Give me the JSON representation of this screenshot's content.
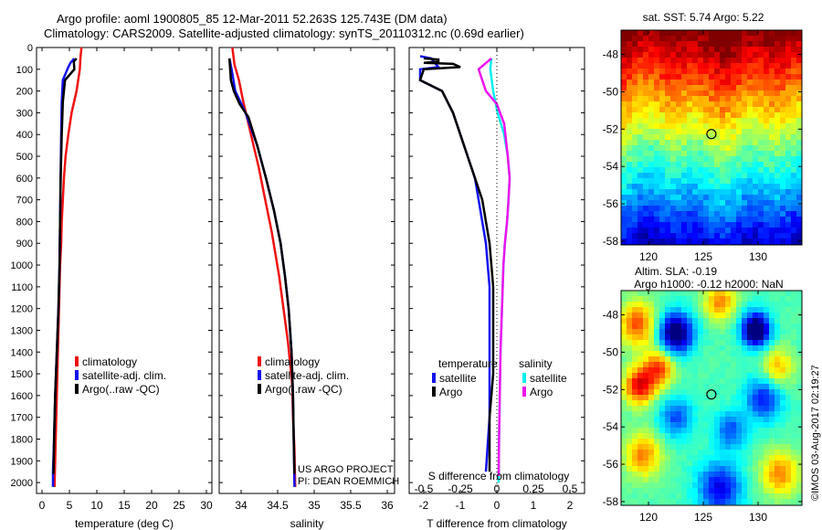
{
  "header": {
    "line1": "Argo profile: aoml 1900805_85 12-Mar-2011 52.263S 125.743E (DM data)",
    "line2": "Climatology: CARS2009. Satellite-adjusted climatology: synTS_20110312.nc (0.69d earlier)"
  },
  "credits": {
    "project": "US ARGO PROJECT",
    "pi": "PI: DEAN ROEMMICH",
    "imos": "©IMOS 03-Aug-2017 02:19:27"
  },
  "colors": {
    "red": "#ee1111",
    "blue": "#1111ee",
    "black": "#000000",
    "cyan": "#00eeee",
    "magenta": "#ee11ee"
  },
  "chart_data": [
    {
      "type": "line",
      "xlabel": "temperature (deg C)",
      "ylabel": "",
      "xlim": [
        -1,
        31
      ],
      "ylim": [
        2050,
        0
      ],
      "xticks": [
        0,
        5,
        10,
        15,
        20,
        25,
        30
      ],
      "yticks": [
        0,
        100,
        200,
        300,
        400,
        500,
        600,
        700,
        800,
        900,
        1000,
        1100,
        1200,
        1300,
        1400,
        1500,
        1600,
        1700,
        1800,
        1900,
        2000
      ],
      "legend": [
        "climatology",
        "satellite-adj. clim.",
        "Argo(..raw -QC)"
      ],
      "series": [
        {
          "name": "climatology",
          "color": "red",
          "points": [
            [
              7.2,
              0
            ],
            [
              7.0,
              50
            ],
            [
              6.9,
              100
            ],
            [
              6.3,
              200
            ],
            [
              5.4,
              300
            ],
            [
              4.8,
              400
            ],
            [
              4.3,
              500
            ],
            [
              4.0,
              600
            ],
            [
              3.8,
              700
            ],
            [
              3.6,
              800
            ],
            [
              3.5,
              900
            ],
            [
              3.3,
              1000
            ],
            [
              3.2,
              1100
            ],
            [
              3.1,
              1200
            ],
            [
              3.0,
              1300
            ],
            [
              2.9,
              1400
            ],
            [
              2.8,
              1500
            ],
            [
              2.7,
              1600
            ],
            [
              2.6,
              1700
            ],
            [
              2.5,
              1800
            ],
            [
              2.4,
              1900
            ],
            [
              2.3,
              2000
            ],
            [
              2.3,
              2020
            ]
          ]
        },
        {
          "name": "satellite-adj. clim.",
          "color": "blue",
          "points": [
            [
              5.9,
              50
            ],
            [
              5.2,
              70
            ],
            [
              4.8,
              90
            ],
            [
              3.8,
              150
            ],
            [
              3.6,
              250
            ],
            [
              3.5,
              400
            ],
            [
              3.4,
              600
            ],
            [
              3.3,
              800
            ],
            [
              3.2,
              1000
            ],
            [
              3.0,
              1200
            ],
            [
              2.7,
              1400
            ],
            [
              2.4,
              1600
            ],
            [
              2.2,
              1800
            ],
            [
              2.0,
              1950
            ],
            [
              2.0,
              2020
            ]
          ]
        },
        {
          "name": "Argo(..raw -QC)",
          "color": "black",
          "points": [
            [
              6.3,
              50
            ],
            [
              5.8,
              65
            ],
            [
              5.9,
              100
            ],
            [
              4.2,
              150
            ],
            [
              3.8,
              250
            ],
            [
              3.6,
              400
            ],
            [
              3.4,
              600
            ],
            [
              3.3,
              800
            ],
            [
              3.2,
              1000
            ],
            [
              3.0,
              1200
            ],
            [
              2.7,
              1400
            ],
            [
              2.4,
              1600
            ],
            [
              2.2,
              1800
            ],
            [
              2.1,
              1960
            ]
          ]
        }
      ]
    },
    {
      "type": "line",
      "xlabel": "salinity",
      "ylabel": "",
      "xlim": [
        33.7,
        36.1
      ],
      "ylim": [
        2050,
        0
      ],
      "xticks": [
        34,
        34.5,
        35,
        35.5,
        36
      ],
      "legend": [
        "climatology",
        "satellite-adj. clim.",
        "Argo(..raw -QC)"
      ],
      "series": [
        {
          "name": "climatology",
          "color": "red",
          "points": [
            [
              33.88,
              0
            ],
            [
              33.91,
              80
            ],
            [
              33.97,
              150
            ],
            [
              34.03,
              250
            ],
            [
              34.1,
              350
            ],
            [
              34.17,
              450
            ],
            [
              34.24,
              550
            ],
            [
              34.3,
              650
            ],
            [
              34.36,
              750
            ],
            [
              34.42,
              850
            ],
            [
              34.47,
              950
            ],
            [
              34.52,
              1050
            ],
            [
              34.56,
              1150
            ],
            [
              34.6,
              1250
            ],
            [
              34.64,
              1350
            ],
            [
              34.67,
              1450
            ],
            [
              34.7,
              1550
            ],
            [
              34.71,
              1700
            ],
            [
              34.73,
              1850
            ],
            [
              34.74,
              2020
            ]
          ]
        },
        {
          "name": "satellite-adj. clim.",
          "color": "blue",
          "points": [
            [
              33.84,
              50
            ],
            [
              33.87,
              100
            ],
            [
              33.92,
              200
            ],
            [
              34.06,
              300
            ],
            [
              34.22,
              450
            ],
            [
              34.34,
              600
            ],
            [
              34.45,
              750
            ],
            [
              34.54,
              900
            ],
            [
              34.6,
              1050
            ],
            [
              34.65,
              1200
            ],
            [
              34.69,
              1400
            ],
            [
              34.71,
              1600
            ],
            [
              34.72,
              1800
            ],
            [
              34.73,
              2020
            ]
          ]
        },
        {
          "name": "Argo(..raw -QC)",
          "color": "black",
          "points": [
            [
              33.84,
              50
            ],
            [
              33.86,
              150
            ],
            [
              33.9,
              200
            ],
            [
              33.98,
              260
            ],
            [
              34.1,
              320
            ],
            [
              34.22,
              450
            ],
            [
              34.34,
              600
            ],
            [
              34.45,
              750
            ],
            [
              34.54,
              900
            ],
            [
              34.6,
              1050
            ],
            [
              34.65,
              1200
            ],
            [
              34.69,
              1400
            ],
            [
              34.71,
              1600
            ],
            [
              34.72,
              1800
            ],
            [
              34.73,
              1960
            ]
          ]
        }
      ]
    },
    {
      "type": "line",
      "xlabel": "T difference from climatology",
      "x2label": "S difference from climatology",
      "ylabel": "",
      "xlim": [
        -2.4,
        2.4
      ],
      "ylim": [
        2050,
        0
      ],
      "xticks": [
        -2,
        -1,
        0,
        1,
        2
      ],
      "x2ticks": [
        "-0.5",
        "-0.25",
        "0",
        "0.25",
        "0.5"
      ],
      "legend_temperature_title": "temperature",
      "legend_salinity_title": "salinity",
      "legend": [
        "satellite",
        "Argo",
        "satellite",
        "Argo"
      ],
      "series": [
        {
          "name": "satellite",
          "group": "temperature",
          "color": "blue",
          "points": [
            [
              -2.1,
              40
            ],
            [
              -1.8,
              50
            ],
            [
              -1.7,
              70
            ],
            [
              -1.6,
              90
            ],
            [
              -2.1,
              100
            ],
            [
              -2.1,
              150
            ],
            [
              -1.5,
              200
            ],
            [
              -1.2,
              300
            ],
            [
              -1.0,
              400
            ],
            [
              -0.8,
              500
            ],
            [
              -0.6,
              600
            ],
            [
              -0.5,
              700
            ],
            [
              -0.4,
              800
            ],
            [
              -0.3,
              900
            ],
            [
              -0.2,
              1100
            ],
            [
              -0.2,
              1300
            ],
            [
              -0.2,
              1500
            ],
            [
              -0.2,
              1700
            ],
            [
              -0.3,
              1950
            ]
          ]
        },
        {
          "name": "Argo",
          "group": "temperature",
          "color": "black",
          "points": [
            [
              -2.0,
              50
            ],
            [
              -1.6,
              55
            ],
            [
              -1.6,
              65
            ],
            [
              -2.0,
              70
            ],
            [
              -1.2,
              75
            ],
            [
              -1.0,
              90
            ],
            [
              -2.0,
              100
            ],
            [
              -2.1,
              150
            ],
            [
              -1.5,
              200
            ],
            [
              -1.2,
              300
            ],
            [
              -1.0,
              400
            ],
            [
              -0.8,
              500
            ],
            [
              -0.6,
              600
            ],
            [
              -0.4,
              700
            ],
            [
              -0.3,
              800
            ],
            [
              -0.2,
              900
            ],
            [
              -0.1,
              1100
            ],
            [
              -0.1,
              1300
            ],
            [
              -0.1,
              1500
            ],
            [
              -0.2,
              1700
            ],
            [
              -0.2,
              1950
            ]
          ]
        },
        {
          "name": "satellite",
          "group": "salinity",
          "color": "cyan",
          "points": [
            [
              -0.15,
              50
            ],
            [
              -0.18,
              100
            ],
            [
              -0.1,
              200
            ],
            [
              0.02,
              300
            ],
            [
              0.2,
              400
            ],
            [
              0.3,
              500
            ],
            [
              0.35,
              600
            ],
            [
              0.32,
              700
            ],
            [
              0.28,
              800
            ],
            [
              0.22,
              900
            ],
            [
              0.18,
              1000
            ],
            [
              0.14,
              1200
            ],
            [
              0.1,
              1400
            ],
            [
              0.08,
              1600
            ],
            [
              0.06,
              1800
            ],
            [
              0.05,
              2000
            ]
          ]
        },
        {
          "name": "Argo",
          "group": "salinity",
          "color": "magenta",
          "points": [
            [
              -0.15,
              50
            ],
            [
              -0.5,
              100
            ],
            [
              -0.3,
              200
            ],
            [
              0.0,
              260
            ],
            [
              0.2,
              350
            ],
            [
              0.3,
              500
            ],
            [
              0.35,
              600
            ],
            [
              0.32,
              700
            ],
            [
              0.28,
              800
            ],
            [
              0.22,
              900
            ],
            [
              0.18,
              1000
            ],
            [
              0.14,
              1200
            ],
            [
              0.1,
              1400
            ],
            [
              0.08,
              1600
            ],
            [
              0.06,
              1800
            ],
            [
              0.05,
              1970
            ]
          ]
        }
      ]
    },
    {
      "type": "heatmap",
      "title": "sat. SST: 5.74 Argo: 5.22",
      "xlim": [
        117.5,
        134
      ],
      "ylim": [
        -58.2,
        -46.7
      ],
      "xticks": [
        120,
        125,
        130
      ],
      "yticks": [
        -48,
        -50,
        -52,
        -54,
        -56,
        -58
      ],
      "marker": {
        "lon": 125.743,
        "lat": -52.263
      }
    },
    {
      "type": "heatmap",
      "title": "Altim. SLA: -0.19",
      "subtitle": "Argo h1000: -0.12 h2000: NaN",
      "xlim": [
        117.5,
        134
      ],
      "ylim": [
        -58.2,
        -46.7
      ],
      "xticks": [
        120,
        125,
        130
      ],
      "yticks": [
        -48,
        -50,
        -52,
        -54,
        -56,
        -58
      ],
      "marker": {
        "lon": 125.743,
        "lat": -52.263
      }
    }
  ]
}
